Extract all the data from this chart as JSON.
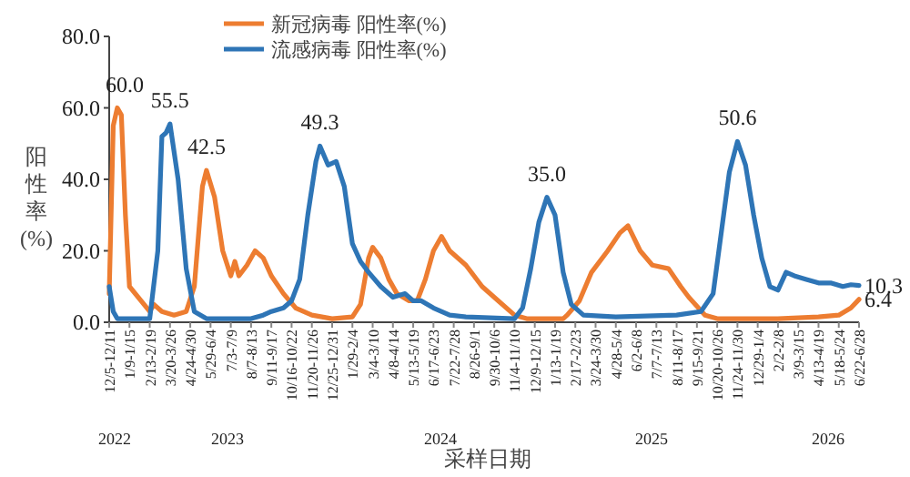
{
  "chart_data": {
    "type": "line",
    "xlabel": "采样日期",
    "ylabel": "阳性率(%)",
    "legend": "top",
    "xlim": [
      "2022-12-05",
      "2026-06-22"
    ],
    "ylim": [
      0,
      80
    ],
    "yticks": [
      {
        "value": 0,
        "label": "0.0"
      },
      {
        "value": 20,
        "label": "20.0"
      },
      {
        "value": 40,
        "label": "40.0"
      },
      {
        "value": 60,
        "label": "60.0"
      },
      {
        "value": 80,
        "label": "80.0"
      }
    ],
    "xticks": [
      {
        "value": "2022-12-05",
        "label": "12/5-12/11"
      },
      {
        "value": "2023-01-09",
        "label": "1/9-1/15"
      },
      {
        "value": "2023-02-13",
        "label": "2/13-2/19"
      },
      {
        "value": "2023-03-20",
        "label": "3/20-3/26"
      },
      {
        "value": "2023-04-24",
        "label": "4/24-4/30"
      },
      {
        "value": "2023-05-29",
        "label": "5/29-6/4"
      },
      {
        "value": "2023-07-03",
        "label": "7/3-7/9"
      },
      {
        "value": "2023-08-07",
        "label": "8/7-8/13"
      },
      {
        "value": "2023-09-11",
        "label": "9/11-9/17"
      },
      {
        "value": "2023-10-16",
        "label": "10/16-10/22"
      },
      {
        "value": "2023-11-20",
        "label": "11/20-11/26"
      },
      {
        "value": "2023-12-25",
        "label": "12/25-12/31"
      },
      {
        "value": "2024-01-29",
        "label": "1/29-2/4"
      },
      {
        "value": "2024-03-04",
        "label": "3/4-3/10"
      },
      {
        "value": "2024-04-08",
        "label": "4/8-4/14"
      },
      {
        "value": "2024-05-13",
        "label": "5/13-5/19"
      },
      {
        "value": "2024-06-17",
        "label": "6/17-6/23"
      },
      {
        "value": "2024-07-22",
        "label": "7/22-7/28"
      },
      {
        "value": "2024-08-26",
        "label": "8/26-9/1"
      },
      {
        "value": "2024-09-30",
        "label": "9/30-10/6"
      },
      {
        "value": "2024-11-04",
        "label": "11/4-11/10"
      },
      {
        "value": "2024-12-09",
        "label": "12/9-12/15"
      },
      {
        "value": "2025-01-13",
        "label": "1/13-1/19"
      },
      {
        "value": "2025-02-17",
        "label": "2/17-2/23"
      },
      {
        "value": "2025-03-24",
        "label": "3/24-3/30"
      },
      {
        "value": "2025-04-28",
        "label": "4/28-5/4"
      },
      {
        "value": "2025-06-02",
        "label": "6/2-6/8"
      },
      {
        "value": "2025-07-07",
        "label": "7/7-7/13"
      },
      {
        "value": "2025-08-11",
        "label": "8/11-8/17"
      },
      {
        "value": "2025-09-15",
        "label": "9/15-9/21"
      },
      {
        "value": "2025-10-20",
        "label": "10/20-10/26"
      },
      {
        "value": "2025-11-24",
        "label": "11/24-11/30"
      },
      {
        "value": "2025-12-29",
        "label": "12/29-1/4"
      },
      {
        "value": "2026-02-02",
        "label": "2/2-2/8"
      },
      {
        "value": "2026-03-09",
        "label": "3/9-3/15"
      },
      {
        "value": "2026-04-13",
        "label": "4/13-4/19"
      },
      {
        "value": "2026-05-18",
        "label": "5/18-5/24"
      },
      {
        "value": "2026-06-22",
        "label": "6/22-6/28"
      }
    ],
    "annotations": [
      "2022",
      "2023",
      "2024",
      "2025",
      "2026"
    ],
    "series": [
      {
        "name": "新冠病毒 阳性率(%)",
        "color": "#ed7d31",
        "x": [
          "2022-12-05",
          "2022-12-12",
          "2022-12-19",
          "2022-12-26",
          "2023-01-02",
          "2023-01-09",
          "2023-02-13",
          "2023-02-20",
          "2023-03-06",
          "2023-03-27",
          "2023-04-17",
          "2023-05-01",
          "2023-05-15",
          "2023-05-22",
          "2023-06-05",
          "2023-06-19",
          "2023-07-03",
          "2023-07-10",
          "2023-07-17",
          "2023-07-31",
          "2023-08-14",
          "2023-08-28",
          "2023-09-11",
          "2023-10-02",
          "2023-10-23",
          "2023-11-20",
          "2023-12-25",
          "2024-01-29",
          "2024-02-12",
          "2024-02-26",
          "2024-03-04",
          "2024-03-18",
          "2024-04-01",
          "2024-04-15",
          "2024-05-06",
          "2024-05-20",
          "2024-06-03",
          "2024-06-17",
          "2024-07-01",
          "2024-07-15",
          "2024-08-12",
          "2024-09-09",
          "2024-10-07",
          "2024-11-04",
          "2024-11-25",
          "2025-01-27",
          "2025-02-03",
          "2025-02-24",
          "2025-03-17",
          "2025-04-14",
          "2025-05-05",
          "2025-05-19",
          "2025-06-09",
          "2025-06-30",
          "2025-07-28",
          "2025-08-18",
          "2025-09-01",
          "2025-09-29",
          "2025-10-20",
          "2026-02-02",
          "2026-04-13",
          "2026-05-18",
          "2026-06-08",
          "2026-06-22"
        ],
        "values": [
          8,
          55,
          60,
          58,
          30,
          10,
          3,
          5,
          3,
          2,
          3,
          10,
          38,
          42.5,
          35,
          20,
          13,
          17,
          13,
          16,
          20,
          18,
          13,
          8,
          4,
          2,
          1,
          1.5,
          5,
          18,
          21,
          18,
          12,
          8,
          6,
          6,
          12,
          20,
          24,
          20,
          16,
          10,
          6,
          2,
          1,
          1,
          2,
          6,
          14,
          20,
          25,
          27,
          20,
          16,
          15,
          10,
          7,
          2,
          1,
          1,
          1.5,
          2,
          4,
          6.4
        ],
        "value_labels": [
          null,
          null,
          "60.0",
          null,
          null,
          null,
          null,
          null,
          null,
          null,
          null,
          null,
          null,
          "42.5",
          null,
          null,
          null,
          null,
          null,
          null,
          null,
          null,
          null,
          null,
          null,
          null,
          null,
          null,
          null,
          null,
          null,
          null,
          null,
          null,
          null,
          null,
          null,
          null,
          null,
          null,
          null,
          null,
          null,
          null,
          null,
          null,
          null,
          null,
          null,
          null,
          null,
          null,
          null,
          null,
          null,
          null,
          null,
          null,
          null,
          null,
          null,
          null,
          null,
          "6.4"
        ]
      },
      {
        "name": "流感病毒 阳性率(%)",
        "color": "#2e75b6",
        "x": [
          "2022-12-05",
          "2022-12-12",
          "2022-12-19",
          "2023-02-13",
          "2023-02-27",
          "2023-03-06",
          "2023-03-13",
          "2023-03-20",
          "2023-04-03",
          "2023-04-17",
          "2023-05-01",
          "2023-05-22",
          "2023-08-07",
          "2023-08-28",
          "2023-09-11",
          "2023-10-02",
          "2023-10-16",
          "2023-10-30",
          "2023-11-13",
          "2023-11-27",
          "2023-12-04",
          "2023-12-18",
          "2024-01-01",
          "2024-01-15",
          "2024-01-29",
          "2024-02-12",
          "2024-02-26",
          "2024-03-18",
          "2024-04-08",
          "2024-04-29",
          "2024-05-13",
          "2024-05-27",
          "2024-06-17",
          "2024-07-15",
          "2024-08-12",
          "2024-11-04",
          "2024-11-18",
          "2024-12-02",
          "2024-12-16",
          "2024-12-30",
          "2025-01-13",
          "2025-01-27",
          "2025-02-10",
          "2025-03-03",
          "2025-04-28",
          "2025-08-11",
          "2025-09-22",
          "2025-10-13",
          "2025-10-27",
          "2025-11-10",
          "2025-11-24",
          "2025-12-08",
          "2025-12-22",
          "2026-01-05",
          "2026-01-19",
          "2026-02-02",
          "2026-02-16",
          "2026-03-02",
          "2026-03-23",
          "2026-04-13",
          "2026-05-04",
          "2026-05-25",
          "2026-06-08",
          "2026-06-22"
        ],
        "values": [
          10,
          3,
          1,
          1,
          20,
          52,
          53,
          55.5,
          40,
          15,
          3,
          1,
          1,
          2,
          3,
          4,
          6,
          12,
          30,
          45,
          49.3,
          44,
          45,
          38,
          22,
          17,
          14,
          10,
          7,
          8,
          6,
          6,
          4,
          2,
          1.5,
          1,
          4,
          15,
          28,
          35,
          30,
          14,
          5,
          2,
          1.5,
          2,
          3,
          8,
          25,
          42,
          50.6,
          44,
          30,
          18,
          10,
          9,
          14,
          13,
          12,
          11,
          11,
          10,
          10.5,
          10.3
        ],
        "value_labels": [
          null,
          null,
          null,
          null,
          null,
          null,
          null,
          "55.5",
          null,
          null,
          null,
          null,
          null,
          null,
          null,
          null,
          null,
          null,
          null,
          null,
          "49.3",
          null,
          null,
          null,
          null,
          null,
          null,
          null,
          null,
          null,
          null,
          null,
          null,
          null,
          null,
          null,
          null,
          null,
          null,
          "35.0",
          null,
          null,
          null,
          null,
          null,
          null,
          null,
          null,
          null,
          null,
          "50.6",
          null,
          null,
          null,
          null,
          null,
          null,
          null,
          null,
          null,
          null,
          null,
          null,
          "10.3"
        ]
      }
    ]
  }
}
